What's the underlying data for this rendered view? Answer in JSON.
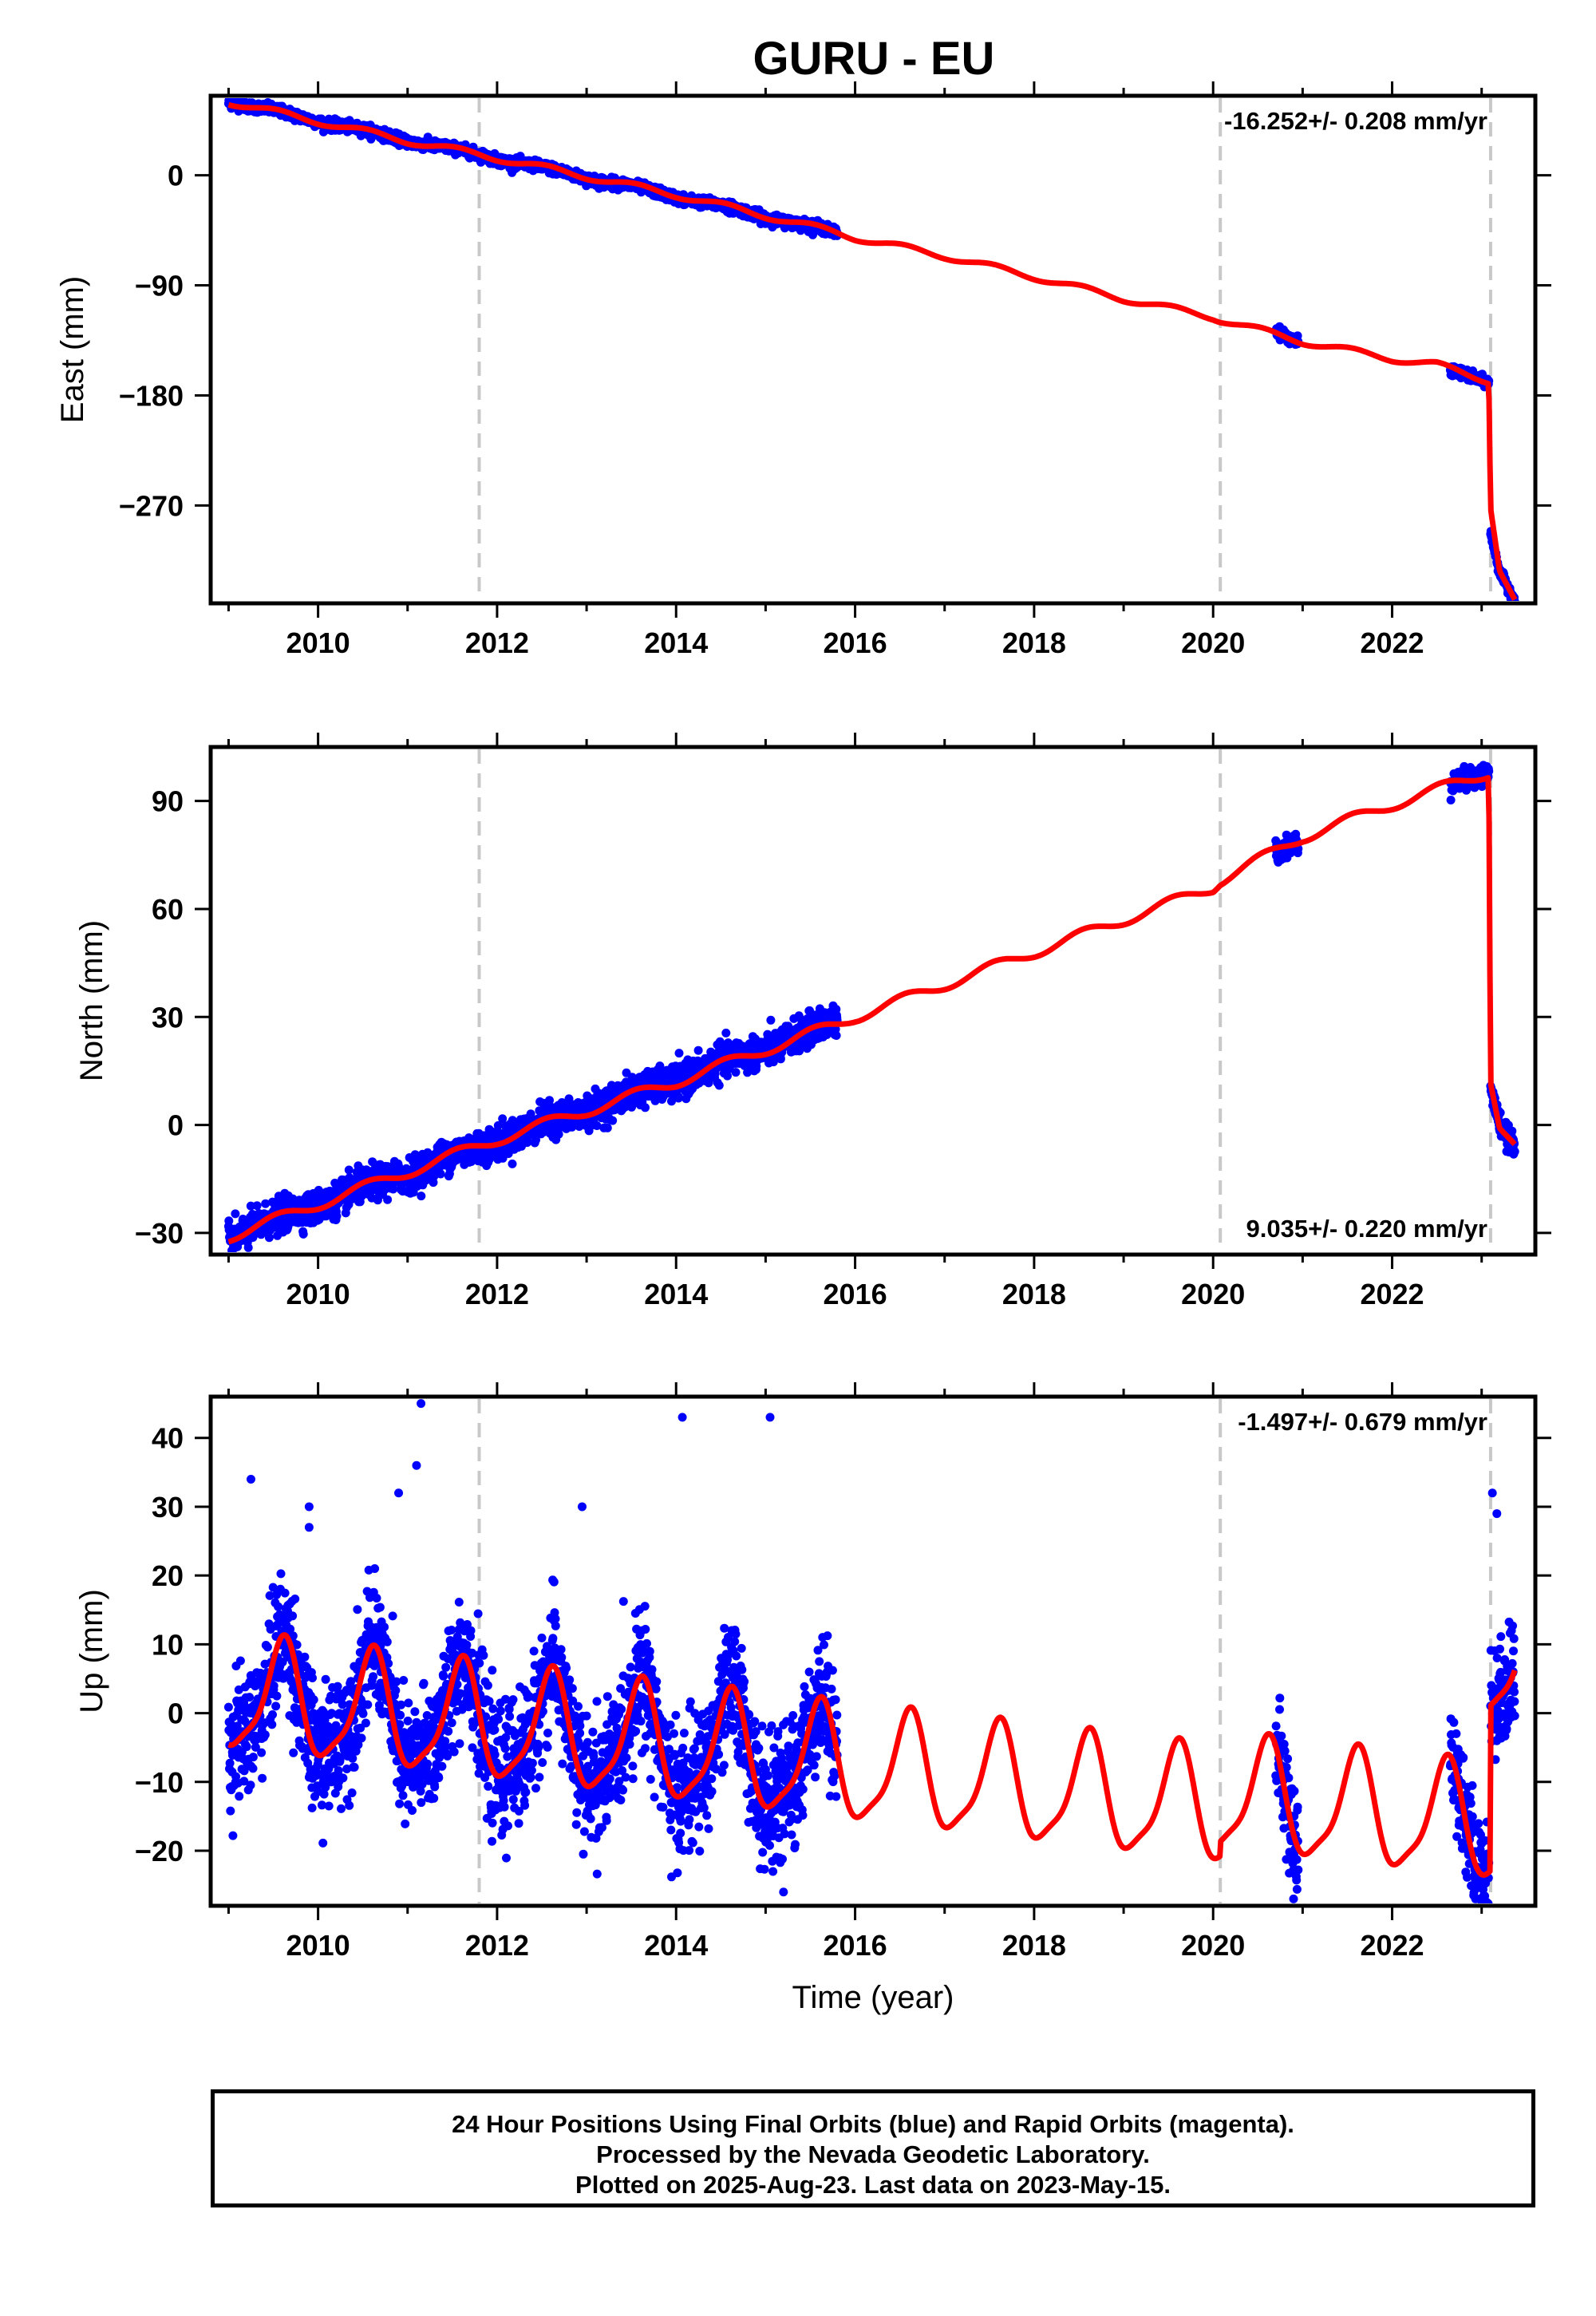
{
  "title": "GURU - EU",
  "colors": {
    "data_points": "#0000ff",
    "model_line": "#ff0000",
    "event_lines": "#c8c8c8",
    "axis": "#000000"
  },
  "chart_data": [
    {
      "type": "scatter",
      "component": "East",
      "ylabel": "East (mm)",
      "xlabel": "",
      "xlim": [
        2008.8,
        2023.6
      ],
      "ylim": [
        -350,
        65
      ],
      "yticks": [
        0,
        -90,
        -180,
        -270
      ],
      "ytick_labels": [
        "0",
        "−90",
        "−180",
        "−270"
      ],
      "xticks": [
        2010,
        2012,
        2014,
        2016,
        2018,
        2020,
        2022
      ],
      "xtick_labels": [
        "2010",
        "2012",
        "2014",
        "2016",
        "2018",
        "2020",
        "2022"
      ],
      "event_lines_x": [
        2011.8,
        2020.08,
        2023.1
      ],
      "rate_label": "-16.252+/- 0.208 mm/yr",
      "rate_position": "top-right",
      "series": [
        {
          "kind": "observations",
          "segments": [
            {
              "x_start": 2009.0,
              "x_end": 2015.8,
              "y_start": 61,
              "y_end": -47,
              "noise_mm": 2
            },
            {
              "x_start": 2020.7,
              "x_end": 2020.95,
              "y_start": -125,
              "y_end": -137,
              "noise_mm": 2
            },
            {
              "x_start": 2022.65,
              "x_end": 2023.08,
              "y_start": -161,
              "y_end": -168,
              "noise_mm": 2
            },
            {
              "x_start": 2023.1,
              "x_end": 2023.37,
              "y_start": -312,
              "y_end": -348,
              "noise_mm": 2
            }
          ]
        },
        {
          "kind": "model",
          "x": [
            2009.0,
            2010.0,
            2011.0,
            2011.8,
            2012.0,
            2013.0,
            2014.0,
            2015.0,
            2015.8,
            2016.0,
            2017.0,
            2018.0,
            2019.0,
            2020.0,
            2020.08,
            2021.0,
            2022.0,
            2022.5,
            2023.08,
            2023.1,
            2023.2,
            2023.37
          ],
          "y": [
            60,
            44,
            28,
            17,
            14,
            -1,
            -16,
            -33,
            -47,
            -51,
            -66,
            -83,
            -101,
            -116,
            -118,
            -136,
            -150,
            -155,
            -168,
            -270,
            -322,
            -348
          ],
          "seasonal_amplitude_mm": 2.5
        }
      ]
    },
    {
      "type": "scatter",
      "component": "North",
      "ylabel": "North (mm)",
      "xlabel": "",
      "xlim": [
        2008.8,
        2023.6
      ],
      "ylim": [
        -36,
        105
      ],
      "yticks": [
        90,
        60,
        30,
        0,
        -30
      ],
      "ytick_labels": [
        "90",
        "60",
        "30",
        "0",
        "−30"
      ],
      "xticks": [
        2010,
        2012,
        2014,
        2016,
        2018,
        2020,
        2022
      ],
      "xtick_labels": [
        "2010",
        "2012",
        "2014",
        "2016",
        "2018",
        "2020",
        "2022"
      ],
      "event_lines_x": [
        2011.8,
        2020.08,
        2023.1
      ],
      "rate_label": "9.035+/- 0.220 mm/yr",
      "rate_position": "bottom-right",
      "series": [
        {
          "kind": "observations",
          "segments": [
            {
              "x_start": 2009.0,
              "x_end": 2015.8,
              "y_start": -31,
              "y_end": 29,
              "noise_mm": 2.2
            },
            {
              "x_start": 2020.7,
              "x_end": 2020.95,
              "y_start": 75,
              "y_end": 79,
              "noise_mm": 1.5
            },
            {
              "x_start": 2022.65,
              "x_end": 2023.08,
              "y_start": 94,
              "y_end": 99,
              "noise_mm": 1.5
            },
            {
              "x_start": 2023.1,
              "x_end": 2023.37,
              "y_start": 8,
              "y_end": -8,
              "noise_mm": 1.5
            }
          ]
        },
        {
          "kind": "model",
          "x": [
            2009.0,
            2010.0,
            2011.0,
            2012.0,
            2013.0,
            2014.0,
            2015.0,
            2015.8,
            2016.0,
            2017.0,
            2018.0,
            2019.0,
            2020.0,
            2020.08,
            2021.0,
            2022.0,
            2023.08,
            2023.1,
            2023.2,
            2023.37
          ],
          "y": [
            -31,
            -22,
            -13,
            -4,
            4,
            12,
            21,
            28,
            30,
            39,
            48,
            57,
            66,
            68,
            80,
            89,
            98,
            13,
            0,
            -6
          ],
          "seasonal_amplitude_mm": 1.5
        }
      ]
    },
    {
      "type": "scatter",
      "component": "Up",
      "ylabel": "Up (mm)",
      "xlabel": "Time (year)",
      "xlim": [
        2008.8,
        2023.6
      ],
      "ylim": [
        -28,
        46
      ],
      "yticks": [
        40,
        30,
        20,
        10,
        0,
        -10,
        -20
      ],
      "ytick_labels": [
        "40",
        "30",
        "20",
        "10",
        "0",
        "−10",
        "−20"
      ],
      "xticks": [
        2010,
        2012,
        2014,
        2016,
        2018,
        2020,
        2022
      ],
      "xtick_labels": [
        "2010",
        "2012",
        "2014",
        "2016",
        "2018",
        "2020",
        "2022"
      ],
      "event_lines_x": [
        2011.8,
        2020.08,
        2023.1
      ],
      "rate_label": "-1.497+/- 0.679 mm/yr",
      "rate_position": "top-right",
      "series": [
        {
          "kind": "observations",
          "segments": [
            {
              "x_start": 2009.0,
              "x_end": 2015.8,
              "noise_mm": 4.5
            },
            {
              "x_start": 2020.7,
              "x_end": 2020.95,
              "noise_mm": 4
            },
            {
              "x_start": 2022.65,
              "x_end": 2023.08,
              "noise_mm": 4
            },
            {
              "x_start": 2023.1,
              "x_end": 2023.37,
              "noise_mm": 4
            }
          ],
          "outliers": [
            {
              "x": 2009.25,
              "y": 34
            },
            {
              "x": 2009.9,
              "y": 30
            },
            {
              "x": 2009.9,
              "y": 27
            },
            {
              "x": 2010.9,
              "y": 32
            },
            {
              "x": 2011.1,
              "y": 36
            },
            {
              "x": 2011.15,
              "y": 45
            },
            {
              "x": 2012.95,
              "y": 30
            },
            {
              "x": 2014.07,
              "y": 43
            },
            {
              "x": 2015.05,
              "y": 43
            },
            {
              "x": 2015.2,
              "y": -26
            },
            {
              "x": 2023.12,
              "y": 32
            },
            {
              "x": 2023.17,
              "y": 29
            }
          ]
        },
        {
          "kind": "model",
          "annual_amplitude_mm": 8,
          "peak_phase_year_fraction": 0.6,
          "offset_mm": 2.5,
          "trend_mm_per_yr": -1.497,
          "reference_year": 2009.0,
          "semiannual_amplitude_mm": 2,
          "jump_at_2020_08_mm": 7,
          "postseismic_offset_after_2023_1_mm": 24
        }
      ]
    }
  ],
  "footer": {
    "line1": "24 Hour Positions Using Final Orbits (blue) and Rapid Orbits (magenta).",
    "line2": "Processed by the Nevada Geodetic Laboratory.",
    "line3": "Plotted on 2025-Aug-23. Last data on 2023-May-15."
  }
}
